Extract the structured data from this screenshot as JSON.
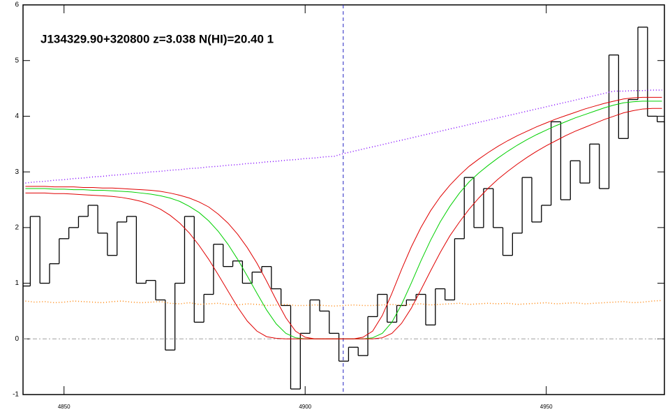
{
  "chart_data": {
    "type": "line",
    "title": "J134329.90+320800 z=3.038 N(HI)=20.40 1",
    "x": [
      4842,
      4844,
      4846,
      4848,
      4850,
      4852,
      4854,
      4856,
      4858,
      4860,
      4862,
      4864,
      4866,
      4868,
      4870,
      4872,
      4874,
      4876,
      4878,
      4880,
      4882,
      4884,
      4886,
      4888,
      4890,
      4892,
      4894,
      4896,
      4898,
      4900,
      4902,
      4904,
      4906,
      4908,
      4910,
      4912,
      4914,
      4916,
      4918,
      4920,
      4922,
      4924,
      4926,
      4928,
      4930,
      4932,
      4934,
      4936,
      4938,
      4940,
      4942,
      4944,
      4946,
      4948,
      4950,
      4952,
      4954,
      4956,
      4958,
      4960,
      4962,
      4964,
      4966,
      4968,
      4970,
      4972,
      4974
    ],
    "series": [
      {
        "color": "#000000",
        "style": "step",
        "values": [
          0.95,
          2.2,
          1.0,
          1.35,
          1.8,
          2.0,
          2.2,
          2.4,
          1.9,
          1.5,
          2.1,
          2.2,
          1.0,
          1.05,
          0.7,
          -0.2,
          1.0,
          2.2,
          0.3,
          0.8,
          1.7,
          1.3,
          1.4,
          1.0,
          1.2,
          1.3,
          0.9,
          0.6,
          -0.9,
          0.1,
          0.7,
          0.5,
          0.1,
          -0.4,
          -0.15,
          -0.3,
          0.4,
          0.8,
          0.3,
          0.6,
          0.7,
          0.8,
          0.25,
          0.9,
          0.7,
          1.8,
          2.9,
          2.0,
          2.7,
          2.0,
          1.5,
          1.9,
          2.9,
          2.1,
          2.4,
          3.9,
          2.5,
          3.2,
          2.8,
          3.5,
          2.7,
          5.1,
          3.6,
          4.3,
          5.6,
          4.0,
          3.9
        ]
      },
      {
        "color": "#8000ff",
        "style": "dotted",
        "values": [
          2.8,
          2.82,
          2.83,
          2.85,
          2.86,
          2.88,
          2.89,
          2.91,
          2.92,
          2.94,
          2.95,
          2.97,
          2.98,
          3.0,
          3.01,
          3.03,
          3.04,
          3.06,
          3.07,
          3.09,
          3.1,
          3.12,
          3.13,
          3.15,
          3.16,
          3.18,
          3.19,
          3.21,
          3.22,
          3.24,
          3.25,
          3.27,
          3.28,
          3.33,
          3.37,
          3.41,
          3.45,
          3.49,
          3.53,
          3.57,
          3.61,
          3.65,
          3.69,
          3.73,
          3.77,
          3.81,
          3.85,
          3.89,
          3.93,
          3.97,
          4.01,
          4.05,
          4.09,
          4.13,
          4.17,
          4.21,
          4.25,
          4.29,
          4.33,
          4.37,
          4.41,
          4.45,
          4.45,
          4.46,
          4.46,
          4.47,
          4.47
        ]
      },
      {
        "color": "#ff8000",
        "style": "dotted",
        "values": [
          0.68,
          0.66,
          0.67,
          0.65,
          0.66,
          0.68,
          0.67,
          0.66,
          0.65,
          0.67,
          0.68,
          0.66,
          0.65,
          0.66,
          0.67,
          0.64,
          0.63,
          0.65,
          0.62,
          0.63,
          0.64,
          0.62,
          0.61,
          0.63,
          0.62,
          0.6,
          0.61,
          0.62,
          0.6,
          0.6,
          0.61,
          0.6,
          0.59,
          0.6,
          0.61,
          0.6,
          0.6,
          0.61,
          0.62,
          0.6,
          0.62,
          0.63,
          0.61,
          0.62,
          0.63,
          0.64,
          0.62,
          0.63,
          0.64,
          0.63,
          0.64,
          0.62,
          0.63,
          0.64,
          0.65,
          0.63,
          0.64,
          0.65,
          0.63,
          0.64,
          0.65,
          0.66,
          0.67,
          0.65,
          0.66,
          0.68,
          0.69
        ]
      },
      {
        "color": "#00d000",
        "style": "solid",
        "values": [
          2.7,
          2.7,
          2.7,
          2.69,
          2.69,
          2.68,
          2.68,
          2.67,
          2.67,
          2.66,
          2.65,
          2.64,
          2.62,
          2.6,
          2.57,
          2.53,
          2.47,
          2.38,
          2.27,
          2.12,
          1.93,
          1.7,
          1.43,
          1.13,
          0.82,
          0.52,
          0.27,
          0.1,
          0.02,
          0,
          0,
          0,
          0,
          0,
          0,
          0,
          0.02,
          0.1,
          0.3,
          0.62,
          1.0,
          1.4,
          1.77,
          2.1,
          2.38,
          2.62,
          2.82,
          2.98,
          3.12,
          3.25,
          3.37,
          3.48,
          3.58,
          3.67,
          3.75,
          3.83,
          3.9,
          3.97,
          4.03,
          4.09,
          4.15,
          4.2,
          4.24,
          4.26,
          4.27,
          4.27,
          4.27
        ]
      },
      {
        "color": "#e00000",
        "style": "solid",
        "values": [
          2.74,
          2.74,
          2.74,
          2.73,
          2.73,
          2.73,
          2.72,
          2.72,
          2.71,
          2.71,
          2.7,
          2.69,
          2.68,
          2.67,
          2.65,
          2.62,
          2.58,
          2.53,
          2.46,
          2.37,
          2.24,
          2.08,
          1.88,
          1.64,
          1.36,
          1.04,
          0.7,
          0.38,
          0.14,
          0.03,
          0,
          0,
          0,
          0,
          0,
          0.03,
          0.14,
          0.42,
          0.82,
          1.25,
          1.65,
          2.0,
          2.3,
          2.55,
          2.76,
          2.94,
          3.1,
          3.23,
          3.35,
          3.46,
          3.56,
          3.65,
          3.73,
          3.81,
          3.88,
          3.95,
          4.01,
          4.07,
          4.13,
          4.18,
          4.23,
          4.27,
          4.31,
          4.33,
          4.34,
          4.34,
          4.34
        ]
      },
      {
        "color": "#e00000",
        "style": "solid",
        "values": [
          2.62,
          2.62,
          2.62,
          2.61,
          2.61,
          2.6,
          2.59,
          2.58,
          2.57,
          2.56,
          2.54,
          2.51,
          2.47,
          2.41,
          2.33,
          2.22,
          2.08,
          1.9,
          1.68,
          1.43,
          1.15,
          0.86,
          0.57,
          0.32,
          0.14,
          0.04,
          0.01,
          0,
          0,
          0,
          0,
          0,
          0,
          0,
          0,
          0,
          0,
          0.02,
          0.1,
          0.28,
          0.55,
          0.88,
          1.22,
          1.55,
          1.85,
          2.1,
          2.33,
          2.53,
          2.71,
          2.87,
          3.01,
          3.14,
          3.26,
          3.37,
          3.47,
          3.56,
          3.65,
          3.73,
          3.8,
          3.87,
          3.94,
          4.0,
          4.06,
          4.1,
          4.13,
          4.14,
          4.14
        ]
      }
    ],
    "reference_x": 4907.9,
    "reference_color": "#2020c0",
    "zero_color": "#a0a0a0",
    "xlim": [
      4841.5,
      4974.5
    ],
    "xticks": [
      4850,
      4900,
      4950
    ],
    "ylim": [
      -1,
      6
    ],
    "yticks": [
      -1,
      0,
      1,
      2,
      3,
      4,
      5,
      6
    ]
  }
}
